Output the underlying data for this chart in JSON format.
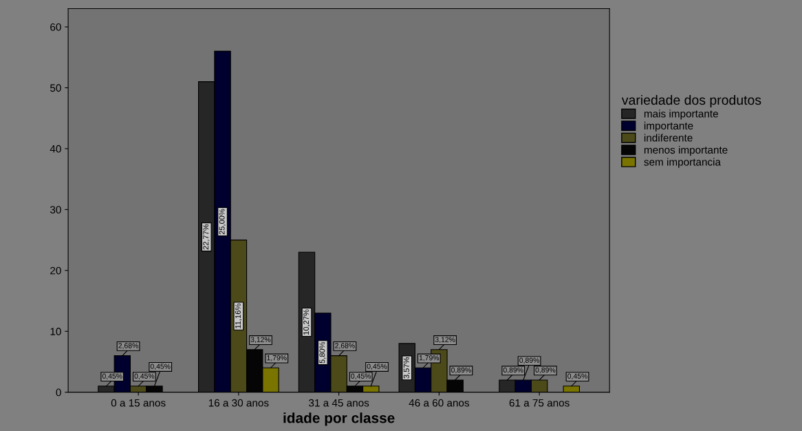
{
  "chart_data": {
    "type": "bar",
    "xlabel": "idade por classe",
    "legend_title": "variedade dos produtos",
    "categories": [
      "0 a 15 anos",
      "16 a 30 anos",
      "31 a 45 anos",
      "46 a 60 anos",
      "61 a 75 anos"
    ],
    "series": [
      {
        "name": "mais importante",
        "color": "#262626",
        "values": [
          1,
          51,
          23,
          8,
          2
        ]
      },
      {
        "name": "importante",
        "color": "#00002e",
        "values": [
          6,
          56,
          13,
          4,
          2
        ]
      },
      {
        "name": "indiferente",
        "color": "#4d4a1a",
        "values": [
          1,
          25,
          6,
          7,
          2
        ]
      },
      {
        "name": "menos importante",
        "color": "#050505",
        "values": [
          1,
          7,
          1,
          2,
          null
        ]
      },
      {
        "name": "sem importancia",
        "color": "#7a7400",
        "values": [
          null,
          4,
          1,
          null,
          1
        ]
      }
    ],
    "annotations": [
      {
        "text": "0,45%",
        "y": 1
      },
      {
        "text": "2,68%",
        "y": 6
      },
      {
        "text": "0,45%",
        "y": 1
      },
      {
        "text": "0,45%",
        "y": 1
      },
      "22,77%",
      "25,00%",
      "11,16%",
      {
        "text": "3,12%",
        "y": 7
      },
      {
        "text": "1,79%",
        "y": 4
      },
      "10,27%",
      "5,80%",
      {
        "text": "2,68%",
        "y": 6
      },
      {
        "text": "0,45%",
        "y": 1
      },
      {
        "text": "0,45%",
        "y": 1
      },
      "3,57%",
      {
        "text": "1,79%",
        "y": 4
      },
      {
        "text": "3,12%",
        "y": 7
      },
      {
        "text": "0,89%",
        "y": 2
      },
      {
        "text": "0,89%",
        "y": 2
      },
      {
        "text": "0,89%",
        "y": 2
      },
      {
        "text": "0,89%",
        "y": 2
      },
      {
        "text": "0,45%",
        "y": 1
      }
    ],
    "ylim": [
      0,
      63
    ],
    "yticks": [
      0,
      10,
      20,
      30,
      40,
      50,
      60
    ],
    "grid": false,
    "legend": "right"
  }
}
